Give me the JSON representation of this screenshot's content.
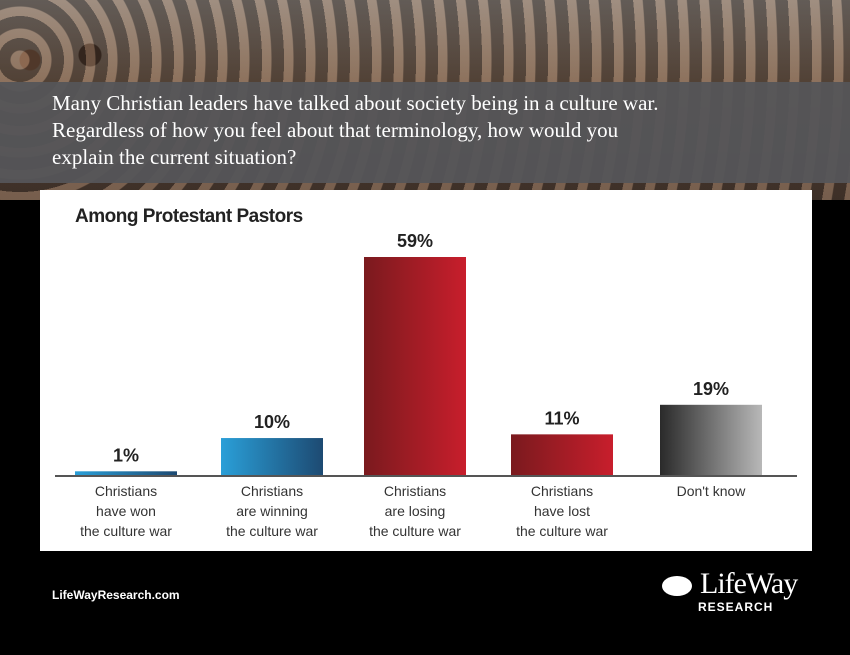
{
  "question": [
    "Many Christian leaders have talked about society being in a culture war.",
    "Regardless of how you feel about that terminology, how would you",
    "explain the current situation?"
  ],
  "footer": {
    "site": "LifeWayResearch.com",
    "logo_text": "LifeWay",
    "logo_sub": "RESEARCH"
  },
  "chart_data": {
    "type": "bar",
    "subtitle": "Among Protestant Pastors",
    "categories": [
      [
        "Christians",
        "have won",
        "the culture war"
      ],
      [
        "Christians",
        "are winning",
        "the culture war"
      ],
      [
        "Christians",
        "are losing",
        "the culture war"
      ],
      [
        "Christians",
        "have lost",
        "the culture war"
      ],
      [
        "Don't know"
      ]
    ],
    "values": [
      1,
      10,
      59,
      11,
      19
    ],
    "value_labels": [
      "1%",
      "10%",
      "59%",
      "11%",
      "19%"
    ],
    "colors": [
      [
        "#2a9fd8",
        "#1d4a72"
      ],
      [
        "#2a9fd8",
        "#1d4a72"
      ],
      [
        "#7a1a1e",
        "#c81e2c"
      ],
      [
        "#7a1a1e",
        "#c81e2c"
      ],
      [
        "#2a2a2a",
        "#b8b8b8"
      ]
    ],
    "ylim": [
      0,
      59
    ]
  }
}
